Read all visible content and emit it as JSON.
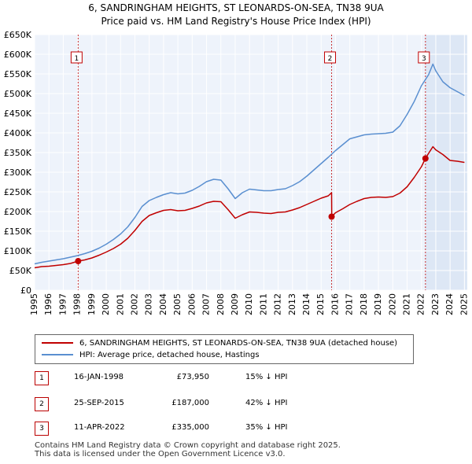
{
  "chart_data": {
    "type": "line",
    "title": "6, SANDRINGHAM HEIGHTS, ST LEONARDS-ON-SEA, TN38 9UA",
    "subtitle": "Price paid vs. HM Land Registry's House Price Index (HPI)",
    "xlabel": "",
    "ylabel": "",
    "xlim": [
      1995,
      2025.2
    ],
    "ylim": [
      0,
      650000
    ],
    "y_ticks": [
      0,
      50000,
      100000,
      150000,
      200000,
      250000,
      300000,
      350000,
      400000,
      450000,
      500000,
      550000,
      600000,
      650000
    ],
    "y_tick_labels": [
      "£0",
      "£50K",
      "£100K",
      "£150K",
      "£200K",
      "£250K",
      "£300K",
      "£350K",
      "£400K",
      "£450K",
      "£500K",
      "£550K",
      "£600K",
      "£650K"
    ],
    "x_ticks": [
      1995,
      1996,
      1997,
      1998,
      1999,
      2000,
      2001,
      2002,
      2003,
      2004,
      2005,
      2006,
      2007,
      2008,
      2009,
      2010,
      2011,
      2012,
      2013,
      2014,
      2015,
      2016,
      2017,
      2018,
      2019,
      2020,
      2021,
      2022,
      2023,
      2024,
      2025
    ],
    "x_tick_labels": [
      "1995",
      "1996",
      "1997",
      "1998",
      "1999",
      "2000",
      "2001",
      "2002",
      "2003",
      "2004",
      "2005",
      "2006",
      "2007",
      "2008",
      "2009",
      "2010",
      "2011",
      "2012",
      "2013",
      "2014",
      "2015",
      "2016",
      "2017",
      "2018",
      "2019",
      "2020",
      "2021",
      "2022",
      "2023",
      "2024",
      "2025"
    ],
    "grid": true,
    "series": [
      {
        "name": "6, SANDRINGHAM HEIGHTS, ST LEONARDS-ON-SEA, TN38 9UA (detached house)",
        "color": "#c00000",
        "x": [
          1995.0,
          1995.5,
          1996.0,
          1996.5,
          1997.0,
          1997.5,
          1998.04,
          1998.5,
          1999.0,
          1999.5,
          2000.0,
          2000.5,
          2001.0,
          2001.5,
          2002.0,
          2002.5,
          2003.0,
          2003.5,
          2004.0,
          2004.5,
          2005.0,
          2005.5,
          2006.0,
          2006.5,
          2007.0,
          2007.5,
          2008.0,
          2008.5,
          2009.0,
          2009.5,
          2010.0,
          2010.5,
          2011.0,
          2011.5,
          2012.0,
          2012.5,
          2013.0,
          2013.5,
          2014.0,
          2014.5,
          2015.0,
          2015.5,
          2015.73,
          2015.74,
          2016.0,
          2016.5,
          2017.0,
          2017.5,
          2018.0,
          2018.5,
          2019.0,
          2019.5,
          2020.0,
          2020.5,
          2021.0,
          2021.5,
          2022.0,
          2022.28,
          2022.5,
          2022.8,
          2023.0,
          2023.5,
          2024.0,
          2024.5,
          2025.0
        ],
        "values": [
          57000,
          60000,
          61000,
          63000,
          65000,
          68000,
          73950,
          77000,
          82000,
          89000,
          97000,
          106000,
          117000,
          132000,
          152000,
          175000,
          190000,
          197000,
          203000,
          205000,
          202000,
          203000,
          208000,
          214000,
          222000,
          226000,
          225000,
          205000,
          183000,
          192000,
          199000,
          198000,
          196000,
          195000,
          198000,
          199000,
          204000,
          210000,
          218000,
          226000,
          234000,
          240000,
          248000,
          187000,
          197000,
          207000,
          218000,
          226000,
          233000,
          236000,
          237000,
          236000,
          238000,
          247000,
          263000,
          287000,
          314000,
          335000,
          348000,
          365000,
          357000,
          345000,
          330000,
          328000,
          325000
        ]
      },
      {
        "name": "HPI: Average price, detached house, Hastings",
        "color": "#5a8fd0",
        "x": [
          1995.0,
          1995.5,
          1996.0,
          1996.5,
          1997.0,
          1997.5,
          1998.0,
          1998.5,
          1999.0,
          1999.5,
          2000.0,
          2000.5,
          2001.0,
          2001.5,
          2002.0,
          2002.5,
          2003.0,
          2003.5,
          2004.0,
          2004.5,
          2005.0,
          2005.5,
          2006.0,
          2006.5,
          2007.0,
          2007.5,
          2008.0,
          2008.5,
          2009.0,
          2009.5,
          2010.0,
          2010.5,
          2011.0,
          2011.5,
          2012.0,
          2012.5,
          2013.0,
          2013.5,
          2014.0,
          2014.5,
          2015.0,
          2015.5,
          2016.0,
          2016.5,
          2017.0,
          2017.5,
          2018.0,
          2018.5,
          2019.0,
          2019.5,
          2020.0,
          2020.5,
          2021.0,
          2021.5,
          2022.0,
          2022.5,
          2022.8,
          2023.0,
          2023.5,
          2024.0,
          2024.5,
          2025.0
        ],
        "values": [
          67000,
          71000,
          74000,
          77000,
          80000,
          84000,
          88000,
          93000,
          99000,
          107000,
          117000,
          129000,
          143000,
          161000,
          185000,
          213000,
          228000,
          236000,
          243000,
          248000,
          245000,
          247000,
          254000,
          264000,
          276000,
          282000,
          280000,
          258000,
          233000,
          248000,
          257000,
          255000,
          253000,
          253000,
          256000,
          258000,
          266000,
          276000,
          290000,
          306000,
          322000,
          338000,
          355000,
          370000,
          385000,
          390000,
          395000,
          397000,
          398000,
          399000,
          402000,
          418000,
          447000,
          480000,
          520000,
          548000,
          575000,
          558000,
          530000,
          515000,
          505000,
          495000
        ]
      }
    ],
    "sales": [
      {
        "id": "1",
        "date": "16-JAN-1998",
        "price_label": "£73,950",
        "hpi_diff": "15% ↓ HPI",
        "x": 1998.04,
        "value": 73950
      },
      {
        "id": "2",
        "date": "25-SEP-2015",
        "price_label": "£187,000",
        "hpi_diff": "42% ↓ HPI",
        "x": 2015.73,
        "value": 187000
      },
      {
        "id": "3",
        "date": "11-APR-2022",
        "price_label": "£335,000",
        "hpi_diff": "35% ↓ HPI",
        "x": 2022.28,
        "value": 335000
      }
    ]
  },
  "legend": {
    "property_label": "6, SANDRINGHAM HEIGHTS, ST LEONARDS-ON-SEA, TN38 9UA (detached house)",
    "hpi_label": "HPI: Average price, detached house, Hastings"
  },
  "footer": {
    "line1": "Contains HM Land Registry data © Crown copyright and database right 2025.",
    "line2": "This data is licensed under the Open Government Licence v3.0."
  },
  "colors": {
    "property": "#c00000",
    "hpi": "#5a8fd0",
    "plot_bg": "#eef3fb",
    "shade": "#dde7f5",
    "grid": "#ffffff"
  }
}
